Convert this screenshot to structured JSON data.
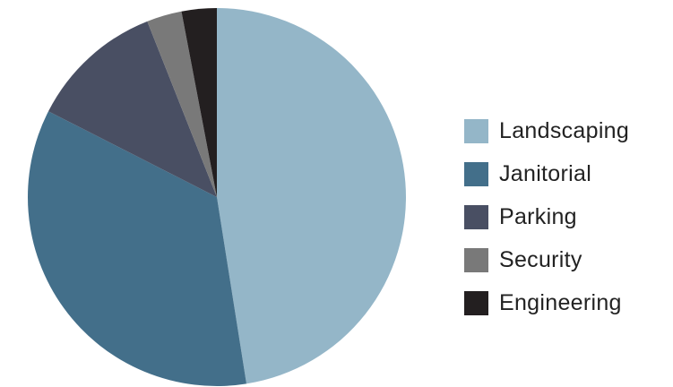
{
  "chart_data": {
    "type": "pie",
    "title": "",
    "slices": [
      {
        "label": "Landscaping",
        "value": 47.5,
        "color": "#94B6C8"
      },
      {
        "label": "Janitorial",
        "value": 35.0,
        "color": "#436F8A"
      },
      {
        "label": "Parking",
        "value": 11.5,
        "color": "#494F63"
      },
      {
        "label": "Security",
        "value": 3.0,
        "color": "#797979"
      },
      {
        "label": "Engineering",
        "value": 3.0,
        "color": "#231F20"
      }
    ],
    "start_angle_deg": 0,
    "direction": "clockwise",
    "legend_position": "right"
  }
}
